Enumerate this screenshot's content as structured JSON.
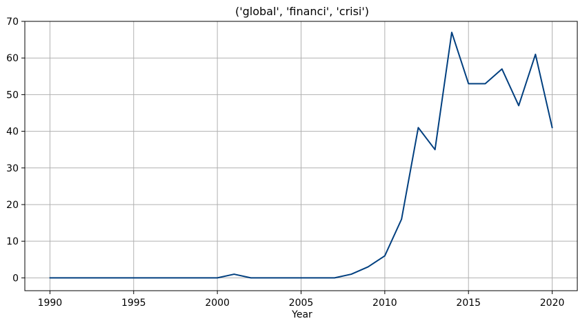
{
  "chart_data": {
    "type": "line",
    "title": "('global', 'financi', 'crisi')",
    "xlabel": "Year",
    "ylabel": "",
    "xlim": [
      1988.5,
      2021.5
    ],
    "ylim": [
      -3.5,
      70
    ],
    "grid": true,
    "line_color": "#003f7f",
    "x_ticks": [
      1990,
      1995,
      2000,
      2005,
      2010,
      2015,
      2020
    ],
    "x_tick_labels": [
      "1990",
      "1995",
      "2000",
      "2005",
      "2010",
      "2015",
      "2020"
    ],
    "y_ticks": [
      0,
      10,
      20,
      30,
      40,
      50,
      60,
      70
    ],
    "y_tick_labels": [
      "0",
      "10",
      "20",
      "30",
      "40",
      "50",
      "60",
      "70"
    ],
    "series": [
      {
        "x": [
          1990,
          1991,
          1992,
          1993,
          1994,
          1995,
          1996,
          1997,
          1998,
          1999,
          2000,
          2001,
          2002,
          2003,
          2004,
          2005,
          2006,
          2007,
          2008,
          2009,
          2010,
          2011,
          2012,
          2013,
          2014,
          2015,
          2016,
          2017,
          2018,
          2019,
          2020
        ],
        "y": [
          0,
          0,
          0,
          0,
          0,
          0,
          0,
          0,
          0,
          0,
          0,
          1,
          0,
          0,
          0,
          0,
          0,
          0,
          1,
          3,
          6,
          16,
          41,
          35,
          67,
          53,
          53,
          57,
          47,
          61,
          41
        ]
      }
    ]
  }
}
